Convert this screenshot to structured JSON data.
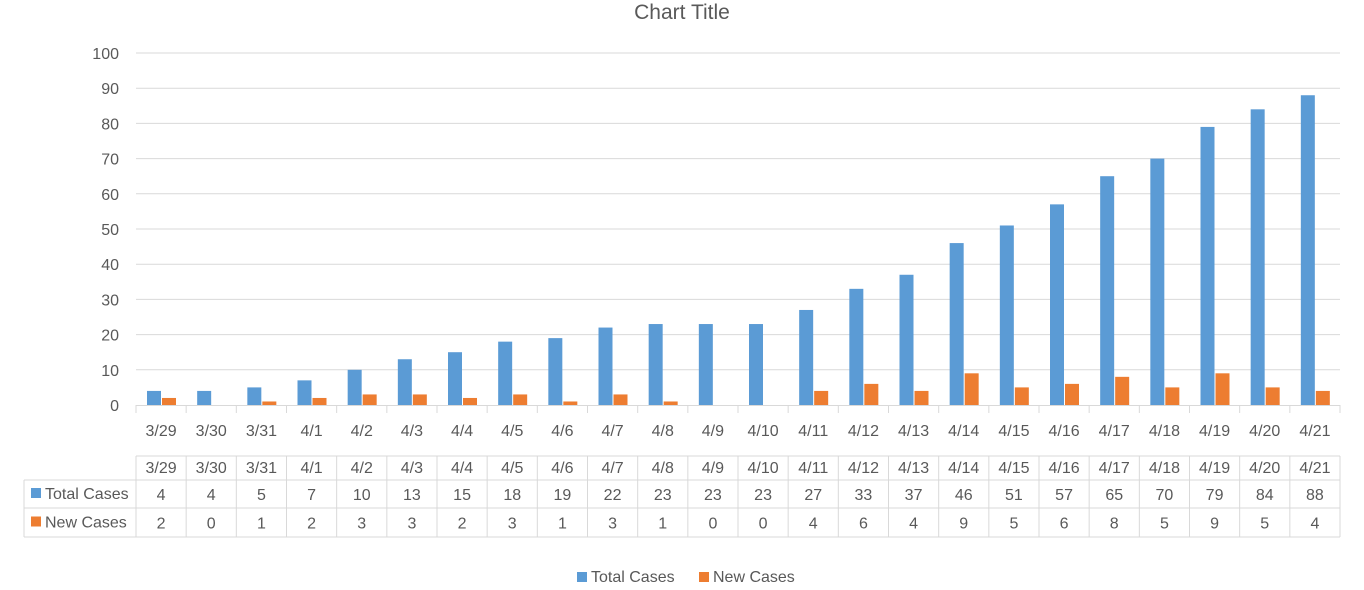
{
  "chart_data": {
    "type": "bar",
    "title": "Chart Title",
    "categories": [
      "3/29",
      "3/30",
      "3/31",
      "4/1",
      "4/2",
      "4/3",
      "4/4",
      "4/5",
      "4/6",
      "4/7",
      "4/8",
      "4/9",
      "4/10",
      "4/11",
      "4/12",
      "4/13",
      "4/14",
      "4/15",
      "4/16",
      "4/17",
      "4/18",
      "4/19",
      "4/20",
      "4/21"
    ],
    "series": [
      {
        "name": "Total Cases",
        "color": "#5B9BD5",
        "values": [
          4,
          4,
          5,
          7,
          10,
          13,
          15,
          18,
          19,
          22,
          23,
          23,
          23,
          27,
          33,
          37,
          46,
          51,
          57,
          65,
          70,
          79,
          84,
          88
        ]
      },
      {
        "name": "New Cases",
        "color": "#ED7D31",
        "values": [
          2,
          0,
          1,
          2,
          3,
          3,
          2,
          3,
          1,
          3,
          1,
          0,
          0,
          4,
          6,
          4,
          9,
          5,
          6,
          8,
          5,
          9,
          5,
          4
        ]
      }
    ],
    "ylim": [
      0,
      100
    ],
    "yticks": [
      0,
      10,
      20,
      30,
      40,
      50,
      60,
      70,
      80,
      90,
      100
    ],
    "grid": true,
    "data_table": true,
    "legend_position": "bottom"
  }
}
